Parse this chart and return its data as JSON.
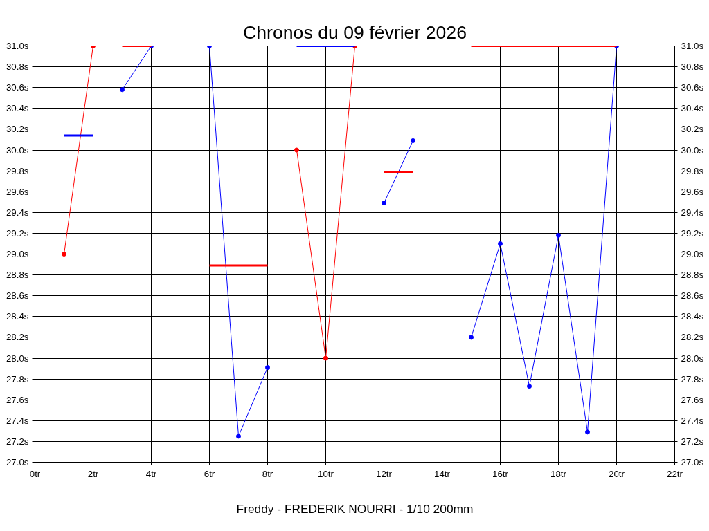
{
  "chart_data": {
    "type": "line",
    "title": "Chronos du 09 février 2026",
    "xlabel": "Freddy - FREDERIK NOURRI - 1/10 200mm",
    "series": [
      {
        "color": "#ff0000",
        "x": [
          1,
          2
        ],
        "values": [
          29.0,
          31.0
        ],
        "marker": "circle"
      },
      {
        "color": "#0000ff",
        "x": [
          1,
          2
        ],
        "values": [
          30.14,
          30.14
        ],
        "marker": "none"
      },
      {
        "color": "#0000ff",
        "x": [
          3,
          4
        ],
        "values": [
          30.58,
          31.0
        ],
        "marker": "circle"
      },
      {
        "color": "#ff0000",
        "x": [
          3,
          4
        ],
        "values": [
          31.0,
          31.0
        ],
        "marker": "none"
      },
      {
        "color": "#0000ff",
        "x": [
          6,
          7,
          8
        ],
        "values": [
          31.0,
          27.25,
          27.91
        ],
        "marker": "circle"
      },
      {
        "color": "#ff0000",
        "x": [
          6,
          8
        ],
        "values": [
          28.89,
          28.89
        ],
        "marker": "none"
      },
      {
        "color": "#ff0000",
        "x": [
          9,
          10,
          11
        ],
        "values": [
          30.0,
          28.0,
          31.0
        ],
        "marker": "circle"
      },
      {
        "color": "#0000ff",
        "x": [
          9,
          11
        ],
        "values": [
          31.0,
          31.0
        ],
        "marker": "none"
      },
      {
        "color": "#0000ff",
        "x": [
          12,
          13
        ],
        "values": [
          29.49,
          30.09
        ],
        "marker": "circle"
      },
      {
        "color": "#ff0000",
        "x": [
          12,
          13
        ],
        "values": [
          29.79,
          29.79
        ],
        "marker": "none"
      },
      {
        "color": "#0000ff",
        "x": [
          15,
          16,
          17,
          18,
          19,
          20
        ],
        "values": [
          28.2,
          29.1,
          27.73,
          29.18,
          27.29,
          31.0
        ],
        "marker": "circle"
      },
      {
        "color": "#ff0000",
        "x": [
          15,
          20
        ],
        "values": [
          31.0,
          31.0
        ],
        "marker": "none"
      }
    ],
    "xlim": [
      0,
      22
    ],
    "xticks": [
      {
        "value": 0,
        "label": "0tr"
      },
      {
        "value": 2,
        "label": "2tr"
      },
      {
        "value": 4,
        "label": "4tr"
      },
      {
        "value": 6,
        "label": "6tr"
      },
      {
        "value": 8,
        "label": "8tr"
      },
      {
        "value": 10,
        "label": "10tr"
      },
      {
        "value": 12,
        "label": "12tr"
      },
      {
        "value": 14,
        "label": "14tr"
      },
      {
        "value": 16,
        "label": "16tr"
      },
      {
        "value": 18,
        "label": "18tr"
      },
      {
        "value": 20,
        "label": "20tr"
      },
      {
        "value": 22,
        "label": "22tr"
      }
    ],
    "ylim": [
      27.0,
      31.0
    ],
    "yticks": [
      {
        "value": 27.0,
        "label": "27.0s"
      },
      {
        "value": 27.2,
        "label": "27.2s"
      },
      {
        "value": 27.4,
        "label": "27.4s"
      },
      {
        "value": 27.6,
        "label": "27.6s"
      },
      {
        "value": 27.8,
        "label": "27.8s"
      },
      {
        "value": 28.0,
        "label": "28.0s"
      },
      {
        "value": 28.2,
        "label": "28.2s"
      },
      {
        "value": 28.4,
        "label": "28.4s"
      },
      {
        "value": 28.6,
        "label": "28.6s"
      },
      {
        "value": 28.8,
        "label": "28.8s"
      },
      {
        "value": 29.0,
        "label": "29.0s"
      },
      {
        "value": 29.2,
        "label": "29.2s"
      },
      {
        "value": 29.4,
        "label": "29.4s"
      },
      {
        "value": 29.6,
        "label": "29.6s"
      },
      {
        "value": 29.8,
        "label": "29.8s"
      },
      {
        "value": 30.0,
        "label": "30.0s"
      },
      {
        "value": 30.2,
        "label": "30.2s"
      },
      {
        "value": 30.4,
        "label": "30.4s"
      },
      {
        "value": 30.6,
        "label": "30.6s"
      },
      {
        "value": 30.8,
        "label": "30.8s"
      },
      {
        "value": 31.0,
        "label": "31.0s"
      }
    ],
    "y2lim": [
      27.0,
      31.0
    ],
    "y2ticks": [
      {
        "value": 27.0,
        "label": "27.0s"
      },
      {
        "value": 27.2,
        "label": "27.2s"
      },
      {
        "value": 27.4,
        "label": "27.4s"
      },
      {
        "value": 27.6,
        "label": "27.6s"
      },
      {
        "value": 27.8,
        "label": "27.8s"
      },
      {
        "value": 28.0,
        "label": "28.0s"
      },
      {
        "value": 28.2,
        "label": "28.2s"
      },
      {
        "value": 28.4,
        "label": "28.4s"
      },
      {
        "value": 28.6,
        "label": "28.6s"
      },
      {
        "value": 28.8,
        "label": "28.8s"
      },
      {
        "value": 29.0,
        "label": "29.0s"
      },
      {
        "value": 29.2,
        "label": "29.2s"
      },
      {
        "value": 29.4,
        "label": "29.4s"
      },
      {
        "value": 29.6,
        "label": "29.6s"
      },
      {
        "value": 29.8,
        "label": "29.8s"
      },
      {
        "value": 30.0,
        "label": "30.0s"
      },
      {
        "value": 30.2,
        "label": "30.2s"
      },
      {
        "value": 30.4,
        "label": "30.4s"
      },
      {
        "value": 30.6,
        "label": "30.6s"
      },
      {
        "value": 30.8,
        "label": "30.8s"
      },
      {
        "value": 31.0,
        "label": "31.0s"
      }
    ],
    "grid": true
  }
}
